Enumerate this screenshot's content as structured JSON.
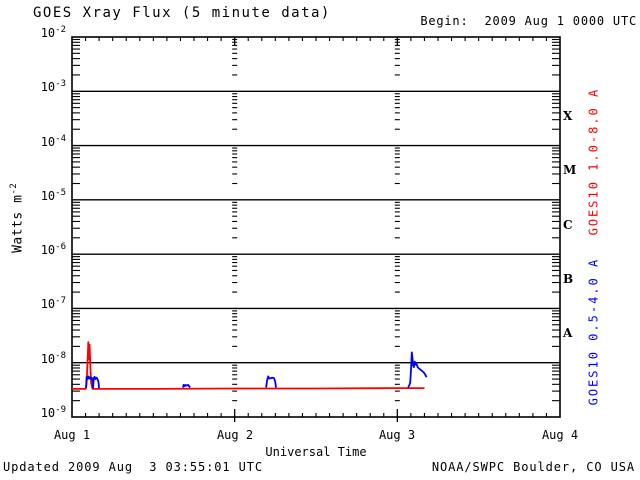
{
  "chart_data": {
    "type": "line",
    "title": "GOES Xray Flux (5 minute data)",
    "begin_label": "Begin:  2009 Aug 1 0000 UTC",
    "xlabel": "Universal Time",
    "ylabel_base": "Watts m",
    "ylabel_exp": "-2",
    "x_ticks": [
      "Aug 1",
      "Aug 2",
      "Aug 3",
      "Aug 4"
    ],
    "y_ticks": [
      {
        "base": "10",
        "exp": "-2"
      },
      {
        "base": "10",
        "exp": "-3"
      },
      {
        "base": "10",
        "exp": "-4"
      },
      {
        "base": "10",
        "exp": "-5"
      },
      {
        "base": "10",
        "exp": "-6"
      },
      {
        "base": "10",
        "exp": "-7"
      },
      {
        "base": "10",
        "exp": "-8"
      },
      {
        "base": "10",
        "exp": "-9"
      }
    ],
    "ylim": [
      1e-09,
      0.01
    ],
    "xlim_days": [
      0,
      3
    ],
    "grid": {
      "decade_lines": true,
      "day_tick_columns": true,
      "legend_position": "right-margin"
    },
    "flare_classes": [
      "X",
      "M",
      "C",
      "B",
      "A"
    ],
    "axis_color": "#000000",
    "series": [
      {
        "name": "GOES10 1.0-8.0 A",
        "color": "#ff0000",
        "segments": [
          [
            [
              0.0,
              3.3e-09
            ],
            [
              0.085,
              3.3e-09
            ],
            [
              0.09,
              4.2e-09
            ],
            [
              0.096,
              1.1e-08
            ],
            [
              0.1,
              2.4e-08
            ],
            [
              0.104,
              1.15e-08
            ],
            [
              0.108,
              2.15e-08
            ],
            [
              0.113,
              8e-09
            ],
            [
              0.118,
              4.2e-09
            ],
            [
              0.126,
              3.3e-09
            ],
            [
              0.5,
              3.3e-09
            ],
            [
              1.0,
              3.35e-09
            ],
            [
              1.5,
              3.35e-09
            ],
            [
              2.0,
              3.4e-09
            ],
            [
              2.167,
              3.4e-09
            ]
          ]
        ]
      },
      {
        "name": "GOES10 0.5-4.0 A",
        "color": "#0000ff",
        "segments": [
          [
            [
              0.086,
              3.4e-09
            ],
            [
              0.09,
              5.4e-09
            ],
            [
              0.095,
              5e-09
            ],
            [
              0.1,
              5.6e-09
            ],
            [
              0.105,
              5.1e-09
            ],
            [
              0.11,
              5.4e-09
            ],
            [
              0.116,
              5e-09
            ],
            [
              0.122,
              5.3e-09
            ],
            [
              0.127,
              4.4e-09
            ],
            [
              0.13,
              3.5e-09
            ],
            [
              0.134,
              5.2e-09
            ],
            [
              0.139,
              5.5e-09
            ],
            [
              0.145,
              5e-09
            ],
            [
              0.152,
              5.3e-09
            ],
            [
              0.158,
              4.9e-09
            ],
            [
              0.163,
              4.4e-09
            ],
            [
              0.166,
              3.4e-09
            ]
          ],
          [
            [
              0.682,
              3.5e-09
            ],
            [
              0.686,
              3.9e-09
            ],
            [
              0.692,
              3.7e-09
            ],
            [
              0.698,
              3.9e-09
            ],
            [
              0.706,
              3.8e-09
            ],
            [
              0.714,
              3.9e-09
            ],
            [
              0.72,
              3.7e-09
            ],
            [
              0.726,
              3.5e-09
            ]
          ],
          [
            [
              1.193,
              3.5e-09
            ],
            [
              1.2,
              4.8e-09
            ],
            [
              1.206,
              5.6e-09
            ],
            [
              1.213,
              5.1e-09
            ],
            [
              1.222,
              5.2e-09
            ],
            [
              1.232,
              5.3e-09
            ],
            [
              1.242,
              5.2e-09
            ],
            [
              1.249,
              4.5e-09
            ],
            [
              1.254,
              3.5e-09
            ]
          ],
          [
            [
              2.066,
              3.5e-09
            ],
            [
              2.073,
              3.8e-09
            ],
            [
              2.079,
              4.3e-09
            ],
            [
              2.085,
              8.5e-09
            ],
            [
              2.089,
              1.55e-08
            ],
            [
              2.093,
              1.2e-08
            ],
            [
              2.097,
              9e-09
            ],
            [
              2.102,
              8.3e-09
            ],
            [
              2.106,
              1.05e-08
            ],
            [
              2.11,
              9.2e-09
            ],
            [
              2.115,
              1e-08
            ],
            [
              2.12,
              9e-09
            ],
            [
              2.126,
              8.2e-09
            ],
            [
              2.134,
              7.8e-09
            ],
            [
              2.143,
              7.4e-09
            ],
            [
              2.153,
              7e-09
            ],
            [
              2.163,
              6.6e-09
            ],
            [
              2.172,
              6e-09
            ],
            [
              2.18,
              5.4e-09
            ]
          ]
        ]
      }
    ],
    "footer_left": "Updated 2009 Aug  3 03:55:01 UTC",
    "footer_right": "NOAA/SWPC Boulder, CO USA"
  }
}
